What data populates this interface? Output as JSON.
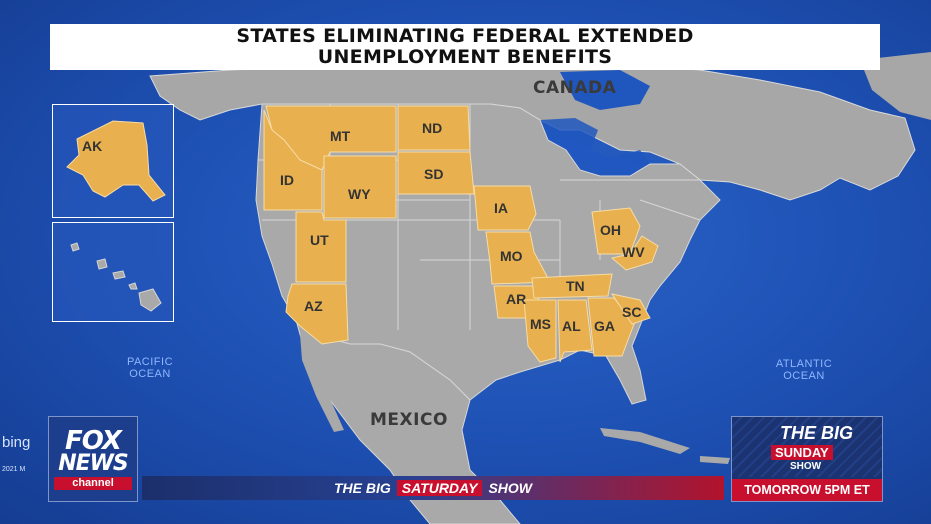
{
  "title": {
    "line1": "STATES ELIMINATING FEDERAL EXTENDED",
    "line2": "UNEMPLOYMENT BENEFITS"
  },
  "countries": {
    "canada": "CANADA",
    "mexico": "MEXICO"
  },
  "oceans": {
    "pacific_line1": "PACIFIC",
    "pacific_line2": "OCEAN",
    "atlantic_line1": "ATLANTIC",
    "atlantic_line2": "OCEAN"
  },
  "highlighted_states": [
    "AK",
    "MT",
    "ND",
    "ID",
    "WY",
    "SD",
    "UT",
    "AZ",
    "IA",
    "MO",
    "AR",
    "MS",
    "AL",
    "TN",
    "GA",
    "SC",
    "OH",
    "WV"
  ],
  "state_labels": {
    "AK": "AK",
    "MT": "MT",
    "ND": "ND",
    "ID": "ID",
    "WY": "WY",
    "SD": "SD",
    "UT": "UT",
    "AZ": "AZ",
    "IA": "IA",
    "MO": "MO",
    "AR": "AR",
    "MS": "MS",
    "AL": "AL",
    "TN": "TN",
    "GA": "GA",
    "SC": "SC",
    "OH": "OH",
    "WV": "WV"
  },
  "colors": {
    "highlight": "#e8b04e",
    "land": "#a9a9a9",
    "ocean": "#1d4fb1",
    "brand_red": "#c8102e"
  },
  "logo": {
    "fox": "FOX",
    "news": "NEWS",
    "channel": "channel"
  },
  "ticker": {
    "the_big": "THE BIG",
    "saturday": "SATURDAY",
    "show": "SHOW"
  },
  "promo": {
    "the_big": "THE BIG",
    "sunday": "SUNDAY",
    "show": "SHOW",
    "time": "TOMORROW 5PM ET"
  },
  "watermark": {
    "bing": "bing",
    "copyright": "2021 M"
  }
}
